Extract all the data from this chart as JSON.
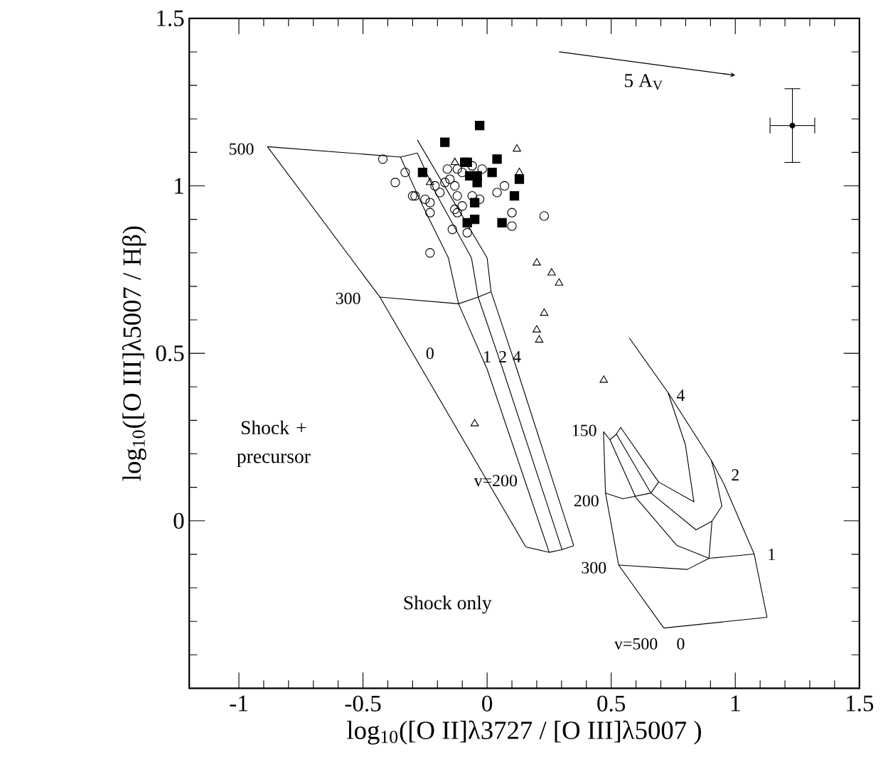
{
  "chart_data": {
    "type": "line",
    "xlabel": "log$_{10}$([O II]λ3727 / [O III]λ5007 )",
    "ylabel": "log$_{10}$([O III]λ5007 / Hβ)",
    "xlim": [
      -1.2,
      1.5
    ],
    "ylim": [
      -0.5,
      1.5
    ],
    "xticks": [
      -1,
      -0.5,
      0,
      0.5,
      1,
      1.5
    ],
    "yticks": [
      {
        "value": -0.5,
        "label": null
      },
      0,
      0.5,
      1,
      1.5
    ],
    "grid": false,
    "series": [
      {
        "color": "#000000",
        "x": [
          -0.885,
          -0.432,
          0.156
        ],
        "values": [
          1.117,
          0.668,
          -0.078
        ]
      },
      {
        "color": "#000000",
        "x": [
          -0.349,
          -0.26,
          -0.156,
          -0.115,
          0.0,
          0.25
        ],
        "values": [
          1.086,
          0.941,
          0.785,
          0.648,
          0.453,
          -0.094
        ]
      },
      {
        "color": "#000000",
        "x": [
          -0.281,
          -0.208,
          -0.063,
          -0.036,
          0.063,
          0.302
        ],
        "values": [
          1.098,
          0.98,
          0.785,
          0.668,
          0.453,
          -0.086
        ]
      },
      {
        "color": "#000000",
        "x": [
          -0.281,
          -0.156,
          0.0,
          0.016,
          0.12,
          0.349
        ],
        "values": [
          1.137,
          0.98,
          0.785,
          0.684,
          0.453,
          -0.074
        ]
      },
      {
        "color": "#000000",
        "x": [
          -0.885,
          -0.349,
          -0.281
        ],
        "values": [
          1.117,
          1.086,
          1.098
        ]
      },
      {
        "color": "#000000",
        "x": [
          -0.432,
          -0.115,
          -0.036,
          0.016
        ],
        "values": [
          0.668,
          0.648,
          0.668,
          0.684
        ]
      },
      {
        "color": "#000000",
        "x": [
          0.156,
          0.25,
          0.302,
          0.349
        ],
        "values": [
          -0.078,
          -0.094,
          -0.086,
          -0.074
        ]
      },
      {
        "color": "#000000",
        "x": [
          0.469,
          0.477,
          0.53,
          0.712
        ],
        "values": [
          0.266,
          0.083,
          -0.132,
          -0.32
        ]
      },
      {
        "color": "#000000",
        "x": [
          0.495,
          0.599,
          0.764,
          0.894
        ],
        "values": [
          0.242,
          0.07,
          -0.073,
          -0.112
        ]
      },
      {
        "color": "#000000",
        "x": [
          0.521,
          0.66,
          0.842,
          0.906,
          0.946,
          0.92,
          0.903
        ],
        "values": [
          0.259,
          0.083,
          -0.027,
          -0.001,
          0.044,
          0.135,
          0.181
        ]
      },
      {
        "color": "#000000",
        "x": [
          0.894,
          0.906
        ],
        "values": [
          -0.112,
          -0.001
        ]
      },
      {
        "color": "#000000",
        "x": [
          0.538,
          0.691,
          0.833,
          0.799,
          0.729
        ],
        "values": [
          0.279,
          0.116,
          0.057,
          0.227,
          0.383
        ]
      },
      {
        "color": "#000000",
        "x": [
          0.573,
          0.729,
          0.903,
          0.955,
          1.076,
          1.128
        ],
        "values": [
          0.546,
          0.383,
          0.181,
          0.109,
          -0.099,
          -0.288
        ]
      },
      {
        "color": "#000000",
        "x": [
          0.469,
          0.495,
          0.521,
          0.538
        ],
        "values": [
          0.266,
          0.242,
          0.259,
          0.279
        ]
      },
      {
        "color": "#000000",
        "x": [
          0.477,
          0.547,
          0.66,
          0.691
        ],
        "values": [
          0.083,
          0.066,
          0.083,
          0.116
        ]
      },
      {
        "color": "#000000",
        "x": [
          0.53,
          0.807,
          0.894,
          1.076
        ],
        "values": [
          -0.132,
          -0.145,
          -0.112,
          -0.099
        ]
      },
      {
        "color": "#000000",
        "x": [
          0.712,
          1.128
        ],
        "values": [
          -0.32,
          -0.288
        ]
      },
      {
        "type": "scatter",
        "marker": "circle",
        "color": "#000000",
        "x": [
          -0.42,
          -0.33,
          -0.37,
          -0.3,
          -0.29,
          -0.25,
          -0.23,
          -0.23,
          -0.21,
          -0.19,
          -0.17,
          -0.15,
          -0.16,
          -0.12,
          -0.1,
          -0.13,
          -0.12,
          -0.1,
          -0.13,
          -0.12,
          -0.06,
          -0.03,
          -0.02,
          -0.06,
          0.04,
          0.07,
          0.1,
          0.1,
          0.23,
          -0.14,
          -0.08,
          -0.23
        ],
        "values": [
          1.08,
          1.04,
          1.01,
          0.97,
          0.97,
          0.96,
          0.95,
          0.92,
          1.0,
          0.98,
          1.01,
          1.02,
          1.05,
          1.05,
          1.04,
          1.0,
          0.97,
          0.94,
          0.93,
          0.92,
          0.97,
          0.96,
          1.05,
          1.06,
          0.98,
          1.0,
          0.92,
          0.88,
          0.91,
          0.87,
          0.86,
          0.8
        ]
      },
      {
        "type": "scatter",
        "marker": "square",
        "color": "#000000",
        "x": [
          -0.03,
          -0.17,
          -0.26,
          -0.09,
          -0.08,
          0.04,
          0.02,
          -0.07,
          -0.04,
          -0.04,
          0.13,
          0.11,
          -0.05,
          -0.08,
          -0.05,
          0.06
        ],
        "values": [
          1.18,
          1.13,
          1.04,
          1.07,
          1.07,
          1.08,
          1.04,
          1.03,
          1.03,
          1.01,
          1.02,
          0.97,
          0.95,
          0.89,
          0.9,
          0.89
        ]
      },
      {
        "type": "scatter",
        "marker": "triangle",
        "color": "#000000",
        "x": [
          0.12,
          0.13,
          -0.13,
          -0.23,
          0.2,
          0.26,
          0.29,
          0.23,
          0.2,
          0.21,
          0.47,
          -0.05
        ],
        "values": [
          1.11,
          1.04,
          1.07,
          1.01,
          0.77,
          0.74,
          0.71,
          0.62,
          0.57,
          0.54,
          0.42,
          0.29
        ]
      },
      {
        "type": "scatter",
        "marker": "none",
        "color": "#000000",
        "x": [
          1.23
        ],
        "values": [
          1.18
        ],
        "errors": [
          0.11
        ],
        "xerrors": [
          0.09
        ]
      }
    ],
    "annotations": [
      "500",
      "300",
      "0",
      "1",
      "2",
      "4",
      "v=200",
      "150",
      "200",
      "300",
      "4",
      "2",
      "1",
      "v=500",
      "0",
      "Shock + precursor",
      "Shock only",
      "5 A$_{V}$"
    ]
  }
}
